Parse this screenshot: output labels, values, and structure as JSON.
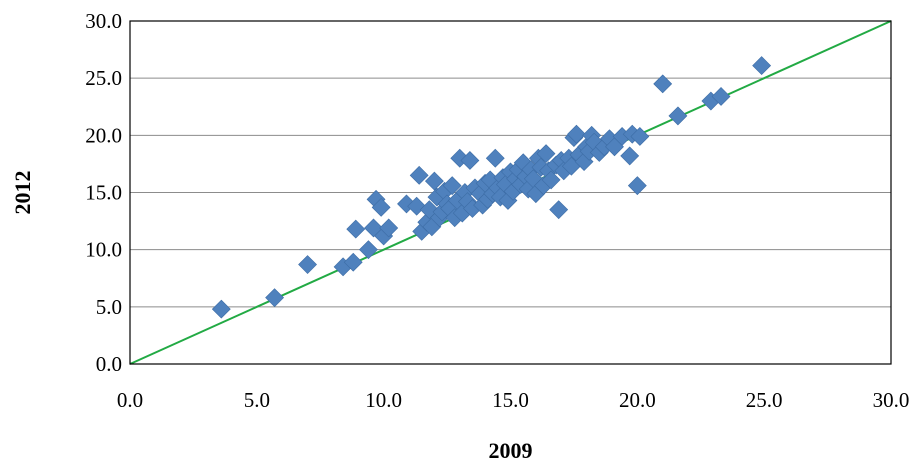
{
  "chart_data": {
    "type": "scatter",
    "title": "",
    "xlabel": "2009",
    "ylabel": "2012",
    "xlim": [
      0,
      30
    ],
    "ylim": [
      0,
      30
    ],
    "x_ticks": [
      "0.0",
      "5.0",
      "10.0",
      "15.0",
      "20.0",
      "25.0",
      "30.0"
    ],
    "y_ticks": [
      "0.0",
      "5.0",
      "10.0",
      "15.0",
      "20.0",
      "25.0",
      "30.0"
    ],
    "grid": "horizontal",
    "legend": "none",
    "marker_color": "#4f81bd",
    "reference_line": {
      "from": [
        0,
        0
      ],
      "to": [
        30,
        30
      ],
      "color": "#22aa44"
    },
    "points": [
      [
        3.6,
        4.8
      ],
      [
        5.7,
        5.8
      ],
      [
        7.0,
        8.7
      ],
      [
        8.4,
        8.5
      ],
      [
        8.8,
        8.9
      ],
      [
        8.9,
        11.8
      ],
      [
        9.4,
        10.0
      ],
      [
        9.6,
        11.9
      ],
      [
        9.7,
        14.4
      ],
      [
        9.9,
        13.7
      ],
      [
        10.0,
        11.2
      ],
      [
        10.2,
        11.9
      ],
      [
        10.9,
        14.0
      ],
      [
        11.3,
        13.8
      ],
      [
        11.4,
        16.5
      ],
      [
        11.5,
        11.6
      ],
      [
        11.7,
        12.4
      ],
      [
        11.8,
        13.5
      ],
      [
        11.9,
        12.0
      ],
      [
        12.0,
        16.0
      ],
      [
        12.1,
        14.6
      ],
      [
        12.2,
        12.8
      ],
      [
        12.3,
        13.3
      ],
      [
        12.4,
        15.1
      ],
      [
        12.5,
        14.0
      ],
      [
        12.6,
        13.6
      ],
      [
        12.7,
        15.6
      ],
      [
        12.8,
        12.8
      ],
      [
        12.9,
        14.3
      ],
      [
        13.0,
        18.0
      ],
      [
        13.1,
        13.2
      ],
      [
        13.2,
        15.0
      ],
      [
        13.3,
        14.2
      ],
      [
        13.4,
        17.8
      ],
      [
        13.5,
        13.6
      ],
      [
        13.6,
        15.4
      ],
      [
        13.8,
        14.9
      ],
      [
        13.9,
        13.9
      ],
      [
        14.0,
        15.8
      ],
      [
        14.1,
        14.4
      ],
      [
        14.2,
        16.1
      ],
      [
        14.3,
        14.9
      ],
      [
        14.4,
        18.0
      ],
      [
        14.5,
        15.4
      ],
      [
        14.6,
        14.6
      ],
      [
        14.7,
        16.3
      ],
      [
        14.8,
        15.7
      ],
      [
        14.9,
        14.3
      ],
      [
        15.0,
        16.8
      ],
      [
        15.1,
        15.1
      ],
      [
        15.2,
        16.2
      ],
      [
        15.3,
        17.0
      ],
      [
        15.4,
        15.7
      ],
      [
        15.5,
        17.6
      ],
      [
        15.6,
        16.4
      ],
      [
        15.7,
        15.3
      ],
      [
        15.8,
        17.0
      ],
      [
        15.9,
        16.2
      ],
      [
        16.0,
        14.9
      ],
      [
        16.1,
        18.0
      ],
      [
        16.2,
        17.2
      ],
      [
        16.3,
        15.6
      ],
      [
        16.4,
        18.4
      ],
      [
        16.5,
        16.9
      ],
      [
        16.6,
        16.1
      ],
      [
        16.8,
        17.4
      ],
      [
        16.9,
        13.5
      ],
      [
        17.0,
        17.8
      ],
      [
        17.1,
        16.9
      ],
      [
        17.3,
        18.0
      ],
      [
        17.4,
        17.3
      ],
      [
        17.5,
        19.8
      ],
      [
        17.6,
        20.1
      ],
      [
        17.7,
        18.3
      ],
      [
        17.9,
        17.7
      ],
      [
        18.0,
        19.0
      ],
      [
        18.1,
        18.6
      ],
      [
        18.2,
        20.0
      ],
      [
        18.3,
        19.4
      ],
      [
        18.5,
        18.5
      ],
      [
        18.7,
        19.0
      ],
      [
        18.9,
        19.7
      ],
      [
        19.1,
        19.0
      ],
      [
        19.4,
        19.9
      ],
      [
        19.7,
        18.2
      ],
      [
        19.8,
        20.1
      ],
      [
        20.0,
        15.6
      ],
      [
        20.1,
        19.9
      ],
      [
        21.0,
        24.5
      ],
      [
        21.6,
        21.7
      ],
      [
        22.9,
        23.0
      ],
      [
        23.3,
        23.4
      ],
      [
        24.9,
        26.1
      ]
    ]
  }
}
